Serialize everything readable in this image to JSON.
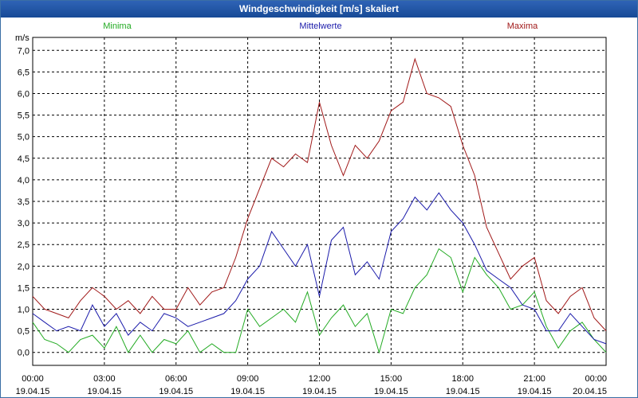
{
  "window": {
    "title": "Windgeschwindigkeit [m/s] skaliert"
  },
  "colors": {
    "minima": "#22aa22",
    "mittelwerte": "#1a1aaa",
    "maxima": "#a01818",
    "grid": "#000000"
  },
  "chart_data": {
    "type": "line",
    "title": "Windgeschwindigkeit [m/s] skaliert",
    "ylabel": "m/s",
    "ylim": [
      -0.3,
      7.3
    ],
    "yticks": [
      "0,0",
      "0,5",
      "1,0",
      "1,5",
      "2,0",
      "2,5",
      "3,0",
      "3,5",
      "4,0",
      "4,5",
      "5,0",
      "5,5",
      "6,0",
      "6,5",
      "7,0"
    ],
    "xlim_hours": [
      0,
      24
    ],
    "xticks": [
      {
        "time": "00:00",
        "date": "19.04.15"
      },
      {
        "time": "03:00",
        "date": "19.04.15"
      },
      {
        "time": "06:00",
        "date": "19.04.15"
      },
      {
        "time": "09:00",
        "date": "19.04.15"
      },
      {
        "time": "12:00",
        "date": "19.04.15"
      },
      {
        "time": "15:00",
        "date": "19.04.15"
      },
      {
        "time": "18:00",
        "date": "19.04.15"
      },
      {
        "time": "21:00",
        "date": "19.04.15"
      },
      {
        "time": "00:00",
        "date": "20.04.15"
      }
    ],
    "grid": true,
    "legend_placement": "top",
    "series": [
      {
        "name": "Minima",
        "x_hours": [
          0.0,
          0.5,
          1.0,
          1.5,
          2.0,
          2.5,
          3.0,
          3.5,
          4.0,
          4.5,
          5.0,
          5.5,
          6.0,
          6.5,
          7.0,
          7.5,
          8.0,
          8.5,
          9.0,
          9.5,
          10.0,
          10.5,
          11.0,
          11.5,
          12.0,
          12.5,
          13.0,
          13.5,
          14.0,
          14.5,
          15.0,
          15.5,
          16.0,
          16.5,
          17.0,
          17.5,
          18.0,
          18.5,
          19.0,
          19.5,
          20.0,
          20.5,
          21.0,
          21.5,
          22.0,
          22.5,
          23.0,
          23.5,
          24.0
        ],
        "values": [
          0.7,
          0.3,
          0.2,
          0.0,
          0.3,
          0.4,
          0.1,
          0.6,
          0.0,
          0.4,
          0.0,
          0.3,
          0.2,
          0.5,
          0.0,
          0.2,
          0.0,
          0.0,
          1.0,
          0.6,
          0.8,
          1.0,
          0.7,
          1.4,
          0.4,
          0.8,
          1.1,
          0.6,
          0.9,
          0.0,
          1.0,
          0.9,
          1.5,
          1.8,
          2.4,
          2.2,
          1.4,
          2.2,
          1.8,
          1.5,
          1.0,
          1.1,
          1.4,
          0.6,
          0.1,
          0.5,
          0.7,
          0.3,
          0.0
        ]
      },
      {
        "name": "Mittelwerte",
        "x_hours": [
          0.0,
          0.5,
          1.0,
          1.5,
          2.0,
          2.5,
          3.0,
          3.5,
          4.0,
          4.5,
          5.0,
          5.5,
          6.0,
          6.5,
          7.0,
          7.5,
          8.0,
          8.5,
          9.0,
          9.5,
          10.0,
          10.5,
          11.0,
          11.5,
          12.0,
          12.5,
          13.0,
          13.5,
          14.0,
          14.5,
          15.0,
          15.5,
          16.0,
          16.5,
          17.0,
          17.5,
          18.0,
          18.5,
          19.0,
          19.5,
          20.0,
          20.5,
          21.0,
          21.5,
          22.0,
          22.5,
          23.0,
          23.5,
          24.0
        ],
        "values": [
          0.9,
          0.7,
          0.5,
          0.6,
          0.5,
          1.1,
          0.6,
          0.9,
          0.4,
          0.7,
          0.5,
          0.9,
          0.8,
          0.6,
          0.7,
          0.8,
          0.9,
          1.2,
          1.7,
          2.0,
          2.8,
          2.4,
          2.0,
          2.5,
          1.3,
          2.6,
          2.9,
          1.8,
          2.1,
          1.7,
          2.8,
          3.1,
          3.6,
          3.3,
          3.7,
          3.3,
          3.0,
          2.5,
          1.9,
          1.7,
          1.5,
          1.1,
          1.0,
          0.5,
          0.5,
          0.9,
          0.6,
          0.3,
          0.2
        ]
      },
      {
        "name": "Maxima",
        "x_hours": [
          0.0,
          0.5,
          1.0,
          1.5,
          2.0,
          2.5,
          3.0,
          3.5,
          4.0,
          4.5,
          5.0,
          5.5,
          6.0,
          6.5,
          7.0,
          7.5,
          8.0,
          8.5,
          9.0,
          9.5,
          10.0,
          10.5,
          11.0,
          11.5,
          12.0,
          12.5,
          13.0,
          13.5,
          14.0,
          14.5,
          15.0,
          15.5,
          16.0,
          16.5,
          17.0,
          17.5,
          18.0,
          18.5,
          19.0,
          19.5,
          20.0,
          20.5,
          21.0,
          21.5,
          22.0,
          22.5,
          23.0,
          23.5,
          24.0
        ],
        "values": [
          1.3,
          1.0,
          0.9,
          0.8,
          1.2,
          1.5,
          1.3,
          1.0,
          1.2,
          0.9,
          1.3,
          1.0,
          1.0,
          1.5,
          1.1,
          1.4,
          1.5,
          2.2,
          3.1,
          3.8,
          4.5,
          4.3,
          4.6,
          4.4,
          5.8,
          4.8,
          4.1,
          4.8,
          4.5,
          4.9,
          5.6,
          5.8,
          6.8,
          6.0,
          5.9,
          5.7,
          4.8,
          4.1,
          2.9,
          2.3,
          1.7,
          2.0,
          2.2,
          1.2,
          0.9,
          1.3,
          1.5,
          0.8,
          0.5
        ]
      }
    ]
  }
}
